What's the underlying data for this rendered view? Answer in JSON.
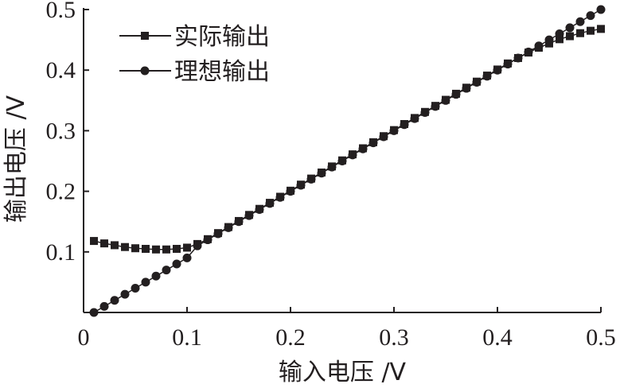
{
  "chart_data": {
    "type": "scatter",
    "xlabel": "输入电压 /V",
    "ylabel": "输出电压 /V",
    "xlim": [
      0,
      0.5
    ],
    "ylim": [
      0,
      0.5
    ],
    "x_ticks": [
      "0",
      "0.1",
      "0.2",
      "0.3",
      "0.4",
      "0.5"
    ],
    "y_ticks": [
      "0.1",
      "0.2",
      "0.3",
      "0.4",
      "0.5"
    ],
    "grid": false,
    "legend_position": "top-left",
    "series": [
      {
        "name": "实际输出",
        "marker": "square",
        "color": "#231f20",
        "x": [
          0.01,
          0.02,
          0.03,
          0.04,
          0.05,
          0.06,
          0.07,
          0.08,
          0.09,
          0.1,
          0.11,
          0.12,
          0.13,
          0.14,
          0.15,
          0.16,
          0.17,
          0.18,
          0.19,
          0.2,
          0.21,
          0.22,
          0.23,
          0.24,
          0.25,
          0.26,
          0.27,
          0.28,
          0.29,
          0.3,
          0.31,
          0.32,
          0.33,
          0.34,
          0.35,
          0.36,
          0.37,
          0.38,
          0.39,
          0.4,
          0.41,
          0.42,
          0.43,
          0.44,
          0.45,
          0.46,
          0.47,
          0.48,
          0.49,
          0.5
        ],
        "y": [
          0.118,
          0.114,
          0.111,
          0.108,
          0.106,
          0.105,
          0.104,
          0.104,
          0.105,
          0.107,
          0.113,
          0.121,
          0.131,
          0.141,
          0.151,
          0.161,
          0.171,
          0.181,
          0.191,
          0.201,
          0.211,
          0.221,
          0.231,
          0.241,
          0.251,
          0.261,
          0.271,
          0.281,
          0.291,
          0.301,
          0.311,
          0.321,
          0.331,
          0.341,
          0.351,
          0.361,
          0.371,
          0.381,
          0.391,
          0.401,
          0.411,
          0.42,
          0.429,
          0.437,
          0.444,
          0.451,
          0.456,
          0.461,
          0.465,
          0.468
        ]
      },
      {
        "name": "理想输出",
        "marker": "circle",
        "color": "#231f20",
        "x": [
          0.01,
          0.02,
          0.03,
          0.04,
          0.05,
          0.06,
          0.07,
          0.08,
          0.09,
          0.1,
          0.11,
          0.12,
          0.13,
          0.14,
          0.15,
          0.16,
          0.17,
          0.18,
          0.19,
          0.2,
          0.21,
          0.22,
          0.23,
          0.24,
          0.25,
          0.26,
          0.27,
          0.28,
          0.29,
          0.3,
          0.31,
          0.32,
          0.33,
          0.34,
          0.35,
          0.36,
          0.37,
          0.38,
          0.39,
          0.4,
          0.41,
          0.42,
          0.43,
          0.44,
          0.45,
          0.46,
          0.47,
          0.48,
          0.49,
          0.5
        ],
        "y": [
          0.0,
          0.01,
          0.02,
          0.03,
          0.04,
          0.05,
          0.06,
          0.07,
          0.08,
          0.09,
          0.11,
          0.12,
          0.13,
          0.14,
          0.15,
          0.16,
          0.17,
          0.18,
          0.19,
          0.2,
          0.21,
          0.22,
          0.23,
          0.24,
          0.25,
          0.26,
          0.27,
          0.28,
          0.29,
          0.3,
          0.31,
          0.32,
          0.33,
          0.34,
          0.35,
          0.36,
          0.37,
          0.38,
          0.39,
          0.4,
          0.41,
          0.42,
          0.43,
          0.44,
          0.45,
          0.46,
          0.47,
          0.48,
          0.49,
          0.5
        ]
      }
    ]
  }
}
